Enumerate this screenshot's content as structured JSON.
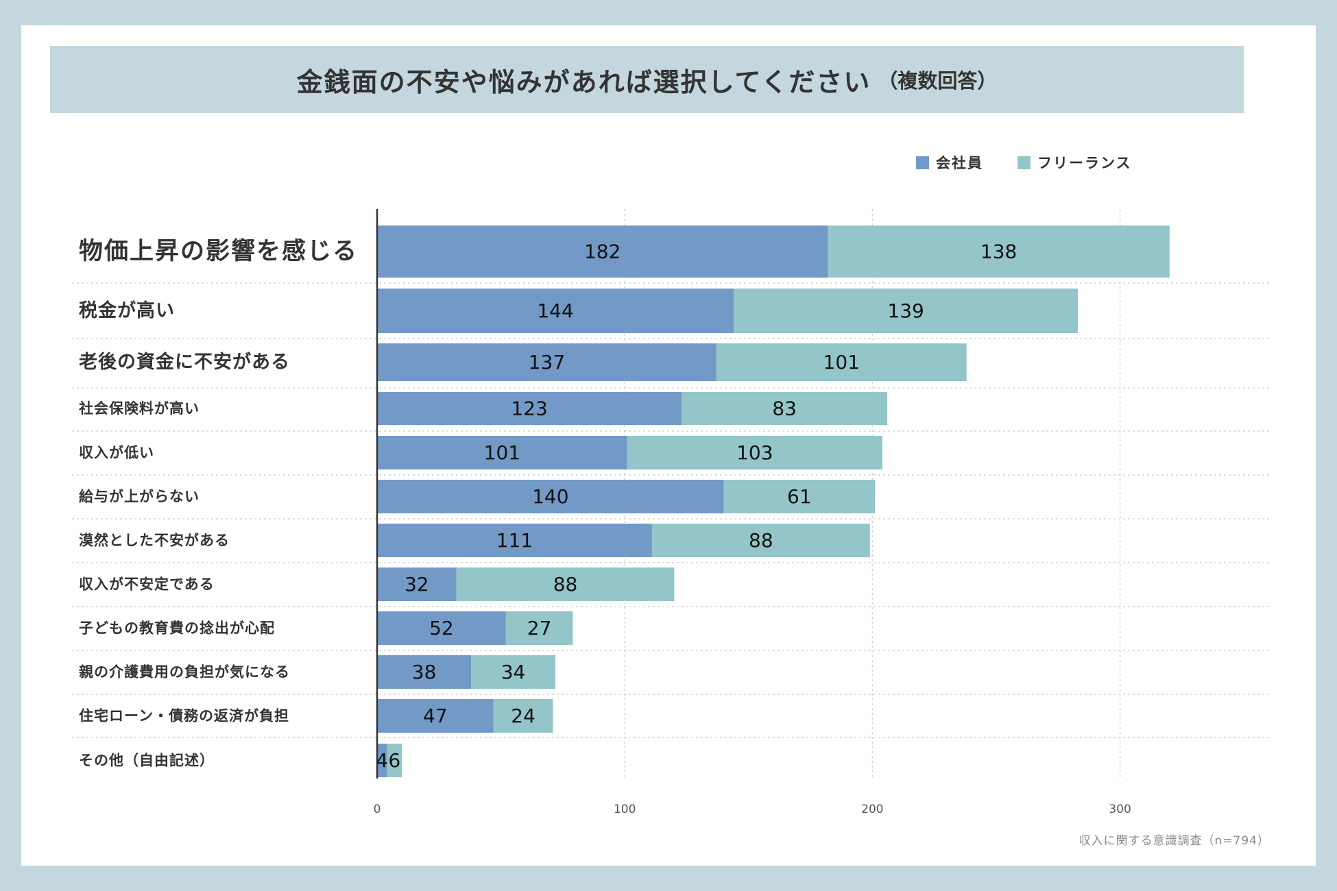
{
  "colors": {
    "employee": "#7399c6",
    "freelance": "#94c5c8",
    "background": "#c4d6de",
    "axis": "#333333",
    "grid": "#cfd6d9"
  },
  "header": {
    "title": "金銭面の不安や悩みがあれば選択してください",
    "subtitle": "（複数回答）"
  },
  "legend": {
    "employee": "会社員",
    "freelance": "フリーランス"
  },
  "source": "収入に関する意識調査（n=794）",
  "chart_data": {
    "type": "bar",
    "orientation": "horizontal",
    "stacked": true,
    "title": "金銭面の不安や悩みがあれば選択してください（複数回答）",
    "categories": [
      "物価上昇の影響を感じる",
      "税金が高い",
      "老後の資金に不安がある",
      "社会保険料が高い",
      "収入が低い",
      "給与が上がらない",
      "漠然とした不安がある",
      "収入が不安定である",
      "子どもの教育費の捻出が心配",
      "親の介護費用の負担が気になる",
      "住宅ローン・債務の返済が負担",
      "その他（自由記述）"
    ],
    "series": [
      {
        "name": "会社員",
        "values": [
          182,
          144,
          137,
          123,
          101,
          140,
          111,
          32,
          52,
          38,
          47,
          4
        ]
      },
      {
        "name": "フリーランス",
        "values": [
          138,
          139,
          101,
          83,
          103,
          61,
          88,
          88,
          27,
          34,
          24,
          6
        ]
      }
    ],
    "xlim": [
      0,
      350
    ],
    "xticks": [
      0,
      100,
      200,
      300
    ],
    "grid": true,
    "legend_position": "top-right"
  }
}
